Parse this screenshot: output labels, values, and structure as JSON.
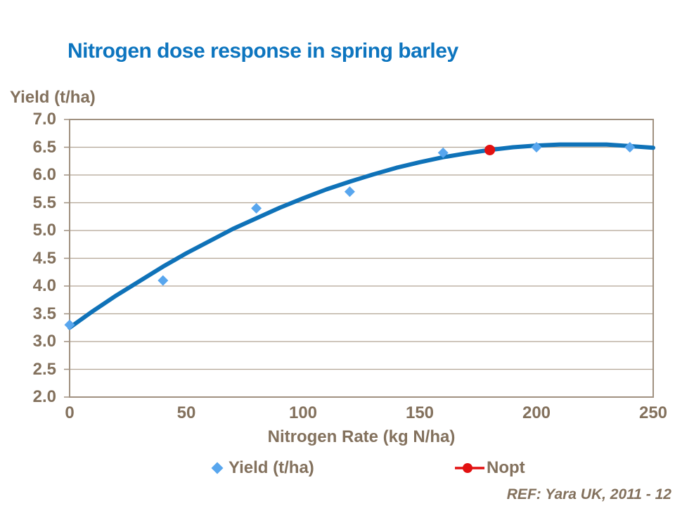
{
  "colors": {
    "title_blue": "#0d75bf",
    "axis_text_brown": "#83715d",
    "gridline": "#b2a595",
    "frame": "#a09180",
    "curve_blue": "#0f72b8",
    "point_blue": "#58a6ee",
    "nopt_red": "#e21111"
  },
  "chart_data": {
    "type": "scatter",
    "title": "Nitrogen dose response in spring barley",
    "xlabel": "Nitrogen Rate (kg N/ha)",
    "ylabel": "Yield (t/ha)",
    "xlim": [
      0,
      250
    ],
    "ylim": [
      2.0,
      7.0
    ],
    "x_ticks": [
      "0",
      "50",
      "100",
      "150",
      "200",
      "250"
    ],
    "y_ticks": [
      "7.0",
      "6.5",
      "6.0",
      "5.5",
      "5.0",
      "4.5",
      "4.0",
      "3.5",
      "3.0",
      "2.5",
      "2.0"
    ],
    "grid": "horizontal",
    "legend_position": "bottom",
    "series": [
      {
        "name": "Yield (t/ha)",
        "marker": "diamond",
        "points": [
          [
            0,
            3.3
          ],
          [
            40,
            4.1
          ],
          [
            80,
            5.4
          ],
          [
            120,
            5.7
          ],
          [
            160,
            6.4
          ],
          [
            200,
            6.5
          ],
          [
            240,
            6.5
          ]
        ]
      },
      {
        "name": "Nopt",
        "marker": "circle",
        "points": [
          [
            180,
            6.45
          ]
        ]
      }
    ],
    "fitted_curve": [
      [
        0,
        3.25
      ],
      [
        10,
        3.55
      ],
      [
        20,
        3.83
      ],
      [
        30,
        4.09
      ],
      [
        40,
        4.35
      ],
      [
        50,
        4.59
      ],
      [
        60,
        4.81
      ],
      [
        70,
        5.03
      ],
      [
        80,
        5.22
      ],
      [
        90,
        5.41
      ],
      [
        100,
        5.58
      ],
      [
        110,
        5.74
      ],
      [
        120,
        5.88
      ],
      [
        130,
        6.01
      ],
      [
        140,
        6.13
      ],
      [
        150,
        6.23
      ],
      [
        160,
        6.32
      ],
      [
        170,
        6.39
      ],
      [
        180,
        6.45
      ],
      [
        190,
        6.5
      ],
      [
        200,
        6.53
      ],
      [
        210,
        6.55
      ],
      [
        220,
        6.55
      ],
      [
        230,
        6.55
      ],
      [
        240,
        6.52
      ],
      [
        250,
        6.49
      ]
    ]
  },
  "footer": {
    "ref_text": "REF: Yara UK, 2011 - 12"
  }
}
